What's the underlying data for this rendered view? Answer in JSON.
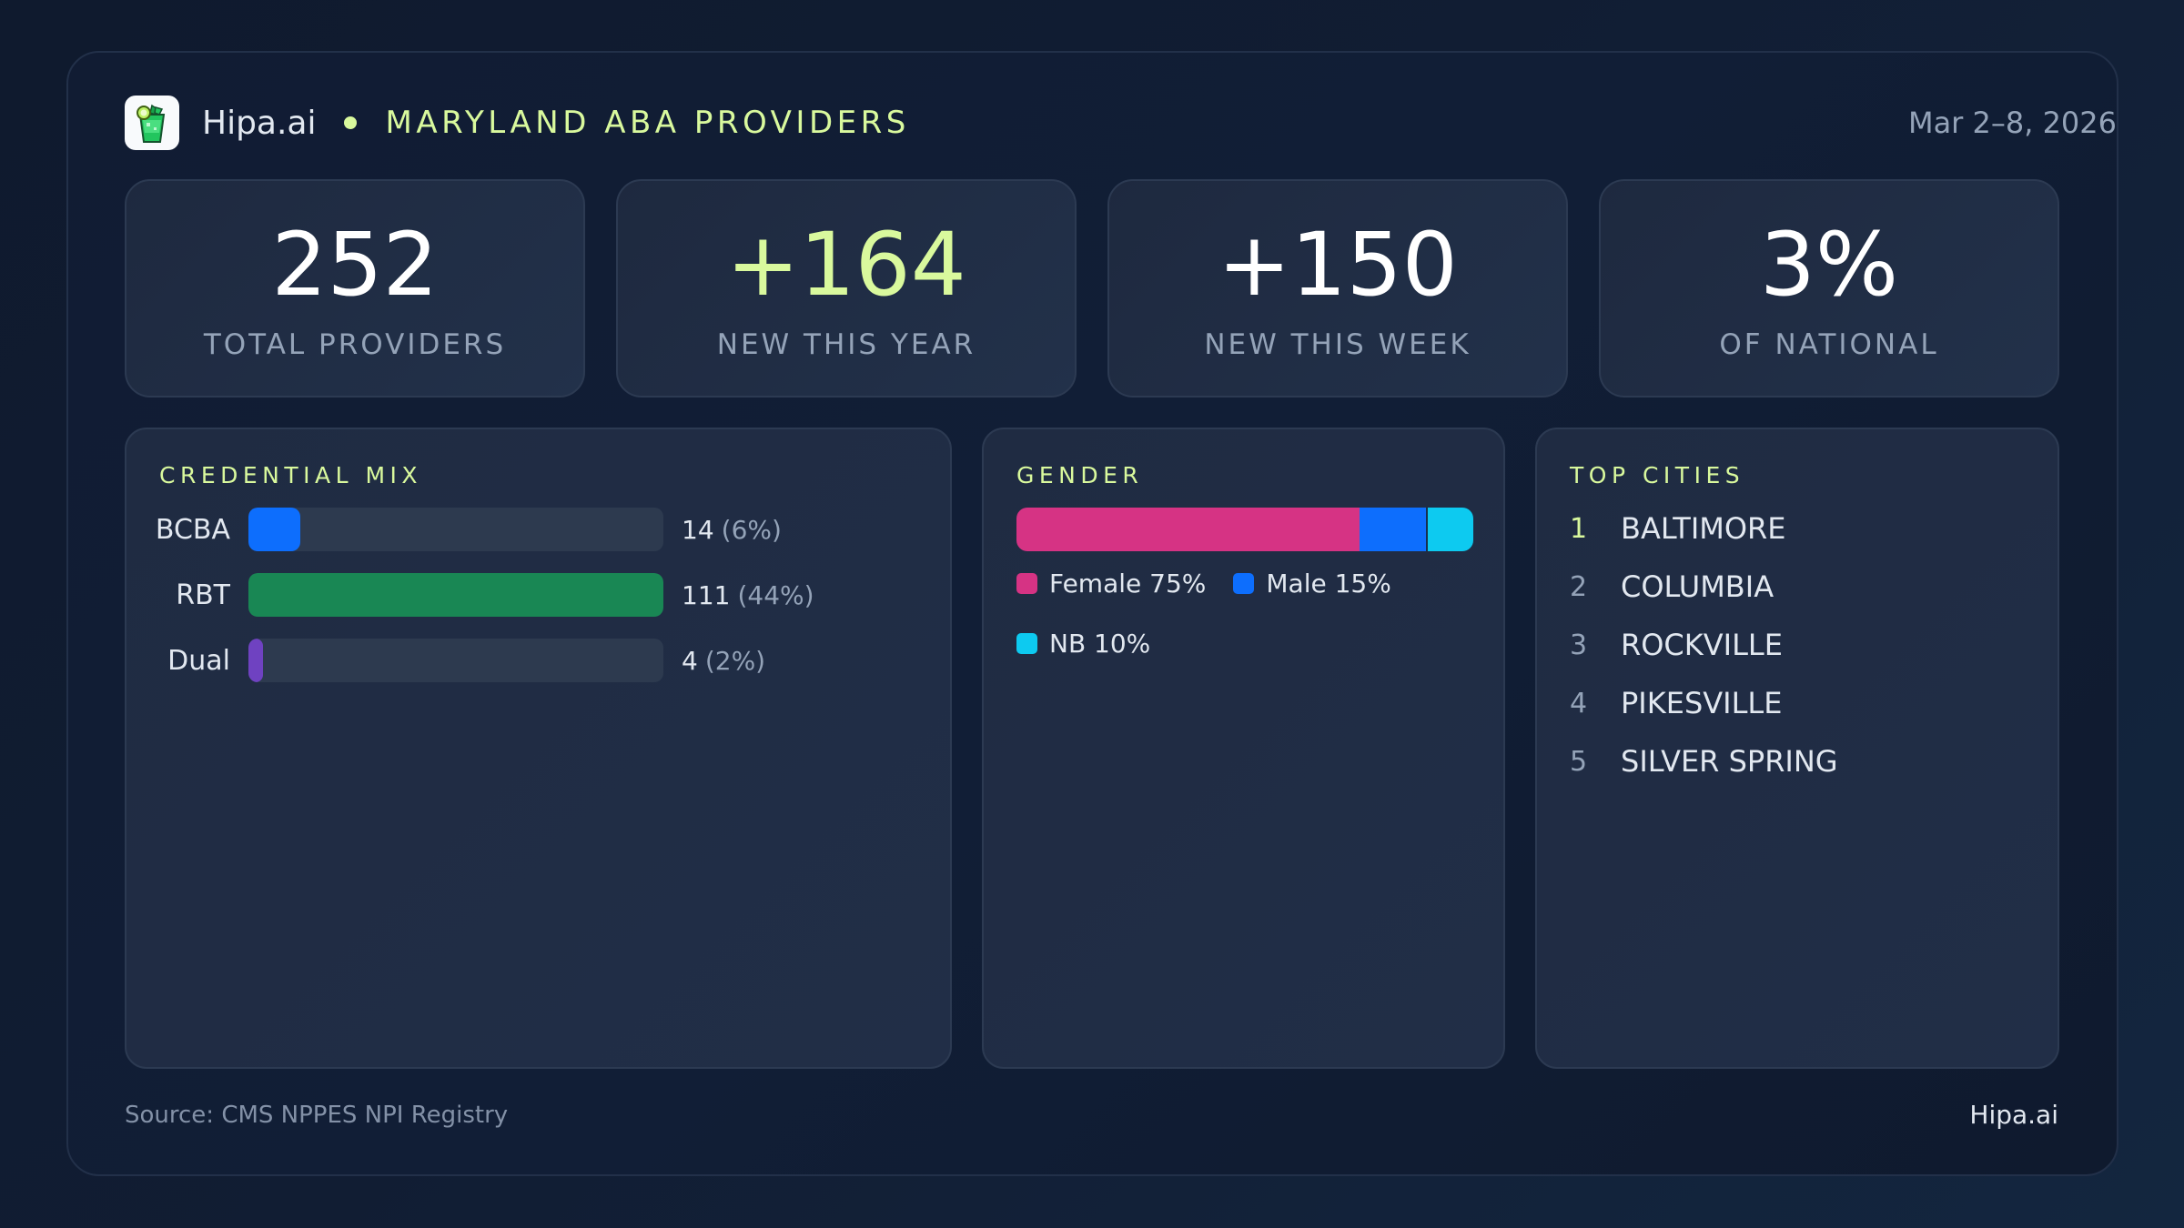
{
  "header": {
    "brand": "Hipa.ai",
    "title": "MARYLAND ABA PROVIDERS",
    "date_range": "Mar 2–8, 2026",
    "logo_icon": "mojito-glass-icon"
  },
  "stats": [
    {
      "value": "252",
      "label": "TOTAL PROVIDERS",
      "accent": false
    },
    {
      "value": "+164",
      "label": "NEW THIS YEAR",
      "accent": true
    },
    {
      "value": "+150",
      "label": "NEW THIS WEEK",
      "accent": false
    },
    {
      "value": "3%",
      "label": "OF NATIONAL",
      "accent": false
    }
  ],
  "credential_mix": {
    "title": "CREDENTIAL MIX",
    "rows": [
      {
        "label": "BCBA",
        "count": "14",
        "pct": "(6%)",
        "color": "#0d6efd",
        "fill_ratio": 0.126
      },
      {
        "label": "RBT",
        "count": "111",
        "pct": "(44%)",
        "color": "#198754",
        "fill_ratio": 1.0
      },
      {
        "label": "Dual",
        "count": "4",
        "pct": "(2%)",
        "color": "#6f42c1",
        "fill_ratio": 0.036
      }
    ]
  },
  "gender": {
    "title": "GENDER",
    "segments": [
      {
        "label": "Female 75%",
        "name": "Female",
        "pct": 75,
        "color": "#d63384"
      },
      {
        "label": "Male 15%",
        "name": "Male",
        "pct": 15,
        "color": "#0d6efd"
      },
      {
        "label": "NB 10%",
        "name": "NB",
        "pct": 10,
        "color": "#0dcaf0"
      }
    ]
  },
  "top_cities": {
    "title": "TOP CITIES",
    "items": [
      {
        "rank": "1",
        "name": "BALTIMORE"
      },
      {
        "rank": "2",
        "name": "COLUMBIA"
      },
      {
        "rank": "3",
        "name": "ROCKVILLE"
      },
      {
        "rank": "4",
        "name": "PIKESVILLE"
      },
      {
        "rank": "5",
        "name": "SILVER SPRING"
      }
    ]
  },
  "footer": {
    "source": "Source: CMS NPPES NPI Registry",
    "brand": "Hipa.ai"
  },
  "colors": {
    "accent": "#d9f99d",
    "background": "#111c33",
    "card": "#1f2b42",
    "muted_text": "#94a3b8"
  },
  "chart_data": [
    {
      "type": "bar",
      "title": "CREDENTIAL MIX",
      "categories": [
        "BCBA",
        "RBT",
        "Dual"
      ],
      "values": [
        14,
        111,
        4
      ],
      "percentages": [
        6,
        44,
        2
      ],
      "orientation": "horizontal"
    },
    {
      "type": "bar",
      "title": "GENDER",
      "stacked": true,
      "categories": [
        "Female",
        "Male",
        "NB"
      ],
      "values": [
        75,
        15,
        10
      ],
      "unit": "%"
    }
  ]
}
